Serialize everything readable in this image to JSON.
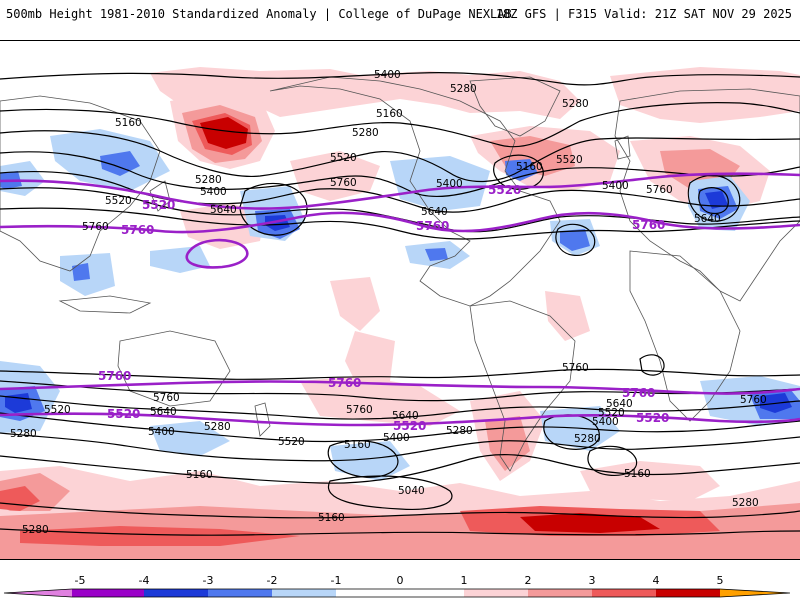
{
  "header": {
    "left": "500mb Height 1981-2010 Standardized Anomaly | College of DuPage NEXLAB",
    "right": "18Z GFS | F315 Valid: 21Z SAT NOV 29 2025"
  },
  "colors": {
    "anom_neg5": "#e080e0",
    "anom_neg4": "#9a00c8",
    "anom_neg3": "#1c3ad8",
    "anom_neg2": "#4f78ee",
    "anom_neg1": "#b8d6f8",
    "anom_pos1": "#fcd3d6",
    "anom_pos2": "#f49a9a",
    "anom_pos3": "#ee5a5a",
    "anom_pos4": "#c80000",
    "anom_pos5": "#ffa000",
    "contour": "#000000",
    "purple_contour": "#9a20c8",
    "coast": "#555555"
  },
  "colorbar": {
    "ticks": [
      "-5",
      "-4",
      "-3",
      "-2",
      "-1",
      "0",
      "1",
      "2",
      "3",
      "4",
      "5"
    ]
  },
  "contour_labels": {
    "l5400_na": "5400",
    "l5280_na_a": "5280",
    "l5280_na_b": "5280",
    "l5160_na_a": "5160",
    "l5280_na_c": "5280",
    "l5520_na": "5520",
    "l5160_na_b": "5160",
    "l5520_atl": "5520",
    "l5160_pac_w": "5160",
    "l5280_pac": "5280",
    "l5400_pac": "5400",
    "l5520_pac_w": "5520",
    "l5640_pac": "5640",
    "l5760_pac": "5760",
    "l5760_na": "5760",
    "l5400_us": "5400",
    "l5640_us": "5640",
    "l5400_eu": "5400",
    "l5760_eu": "5760",
    "l5640_eu": "5640",
    "l5760_sa_n": "5760",
    "l5760_sh_e": "5760",
    "l5640_sh_e": "5640",
    "l5520_sh_e": "5520",
    "l5400_sh_e": "5400",
    "l5280_sh_e": "5280",
    "l5160_sh_e": "5160",
    "l5280_sh_far_e": "5280",
    "l5520_sh_w": "5520",
    "l5280_sh_w": "5280",
    "l5760_sh_w": "5760",
    "l5640_sh_w": "5640",
    "l5400_sh_w": "5400",
    "l5280_sh_c": "5280",
    "l5160_sh_w": "5160",
    "l5520_sh_c": "5520",
    "l5160_sh_c": "5160",
    "l5760_sh_c": "5760",
    "l5640_sh_c": "5640",
    "l5400_sh_c": "5400",
    "l5280_sh_c2": "5280",
    "l5040_sh": "5040",
    "l5160_sh_s": "5160",
    "l5280_ant_w": "5280",
    "l5280_ant_e": "5280"
  },
  "purple_labels": {
    "p5520_pac": "5520",
    "p5760_pac": "5760",
    "p5760_us": "5760",
    "p5520_atl": "5520",
    "p5760_eu": "5760",
    "p5760_sw": "5760",
    "p5760_sc": "5760",
    "p5760_se": "5760",
    "p5520_sw": "5520",
    "p5520_sc": "5520",
    "p5520_se": "5520"
  }
}
